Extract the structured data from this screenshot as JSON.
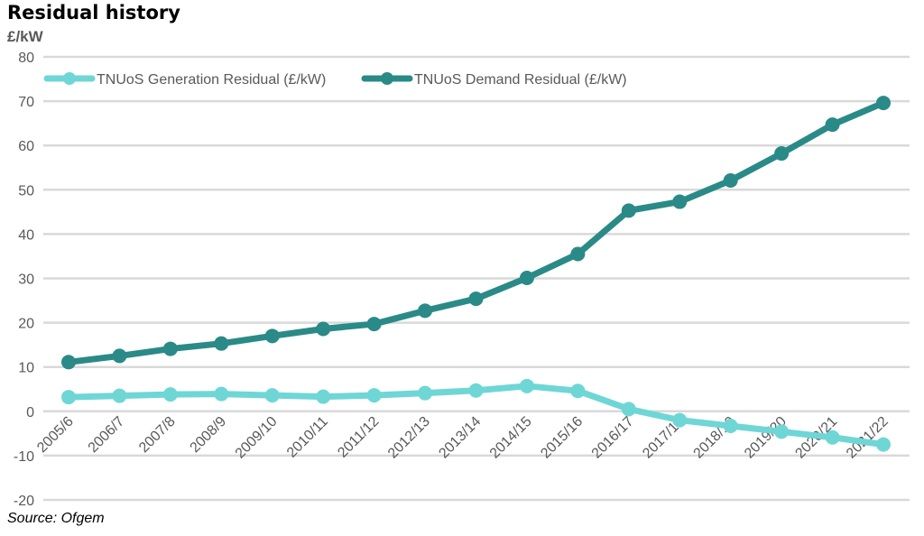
{
  "chart_data": {
    "type": "line",
    "title": "Residual history",
    "ylabel": "£/kW",
    "source": "Source: Ofgem",
    "ylim": [
      -20,
      80
    ],
    "yticks": [
      -20,
      -10,
      0,
      10,
      20,
      30,
      40,
      50,
      60,
      70,
      80
    ],
    "grid": true,
    "legend_position": "top-left",
    "categories": [
      "2005/6",
      "2006/7",
      "2007/8",
      "2008/9",
      "2009/10",
      "2010/11",
      "2011/12",
      "2012/13",
      "2013/14",
      "2014/15",
      "2015/16",
      "2016/17",
      "2017/18",
      "2018/19",
      "2019/20",
      "2020/21",
      "2021/22"
    ],
    "series": [
      {
        "name": "TNUoS Generation Residual (£/kW)",
        "color": "#6fd6d6",
        "values": [
          3.2,
          3.5,
          3.8,
          3.9,
          3.6,
          3.3,
          3.6,
          4.1,
          4.7,
          5.7,
          4.6,
          0.5,
          -2.0,
          -3.3,
          -4.6,
          -5.9,
          -7.5
        ]
      },
      {
        "name": "TNUoS Demand Residual (£/kW)",
        "color": "#2a8a87",
        "values": [
          11.1,
          12.5,
          14.1,
          15.3,
          17.0,
          18.6,
          19.7,
          22.7,
          25.4,
          30.1,
          35.5,
          45.3,
          47.3,
          52.1,
          58.2,
          64.7,
          69.6
        ]
      }
    ]
  }
}
